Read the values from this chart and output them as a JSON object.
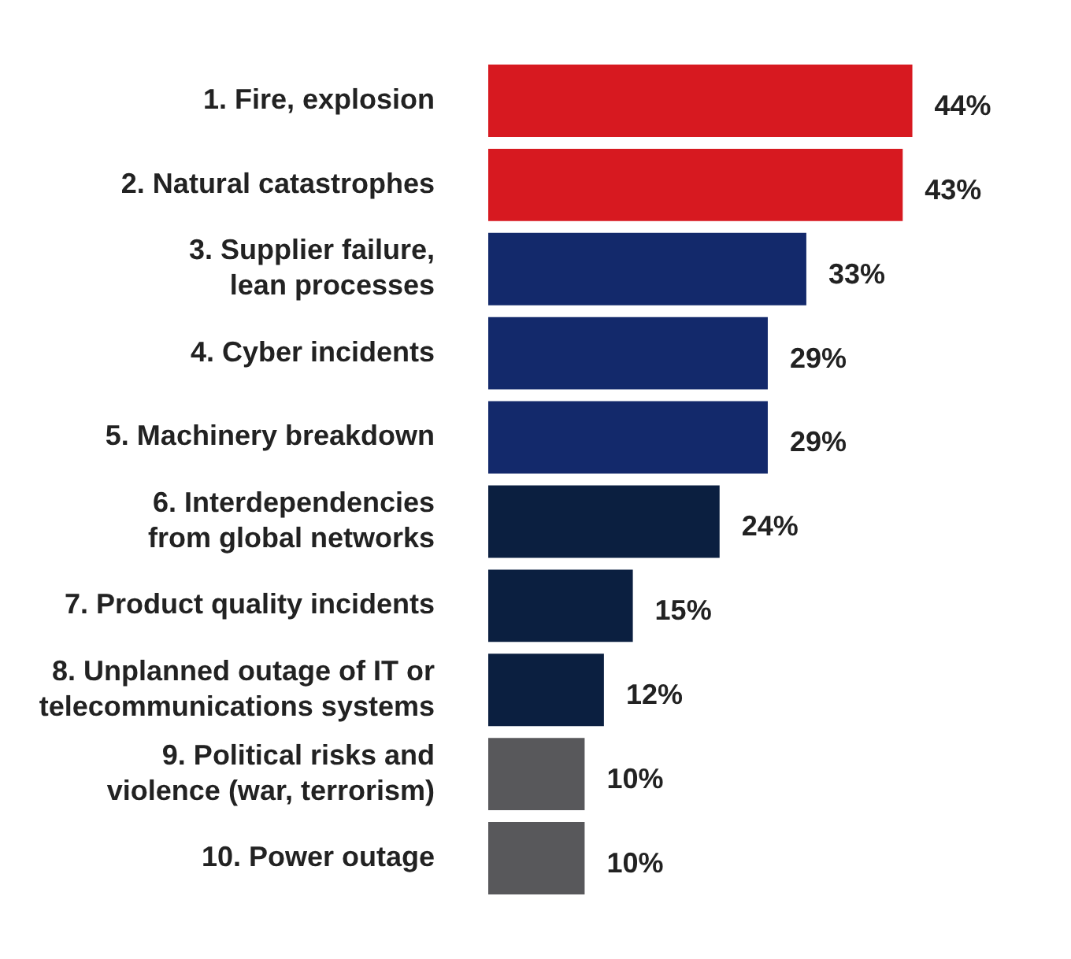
{
  "chart_data": {
    "type": "bar",
    "orientation": "horizontal",
    "data_labels": true,
    "grid": false,
    "legend": false,
    "categories": [
      "1. Fire, explosion",
      "2. Natural catastrophes",
      "3. Supplier failure,\nlean processes",
      "4. Cyber incidents",
      "5. Machinery breakdown",
      "6. Interdependencies\nfrom global networks",
      "7. Product quality incidents",
      "8. Unplanned outage of IT or\ntelecommunications systems",
      "9. Political risks and\nviolence (war, terrorism)",
      "10. Power outage"
    ],
    "values": [
      44,
      43,
      33,
      29,
      29,
      24,
      15,
      12,
      10,
      10
    ],
    "colors": [
      "#d71920",
      "#d71920",
      "#13296b",
      "#13296b",
      "#13296b",
      "#0b1f40",
      "#0b1f40",
      "#0b1f40",
      "#58585b",
      "#58585b"
    ],
    "value_labels": [
      "44%",
      "43%",
      "33%",
      "29%",
      "29%",
      "24%",
      "15%",
      "12%",
      "10%",
      "10%"
    ]
  }
}
